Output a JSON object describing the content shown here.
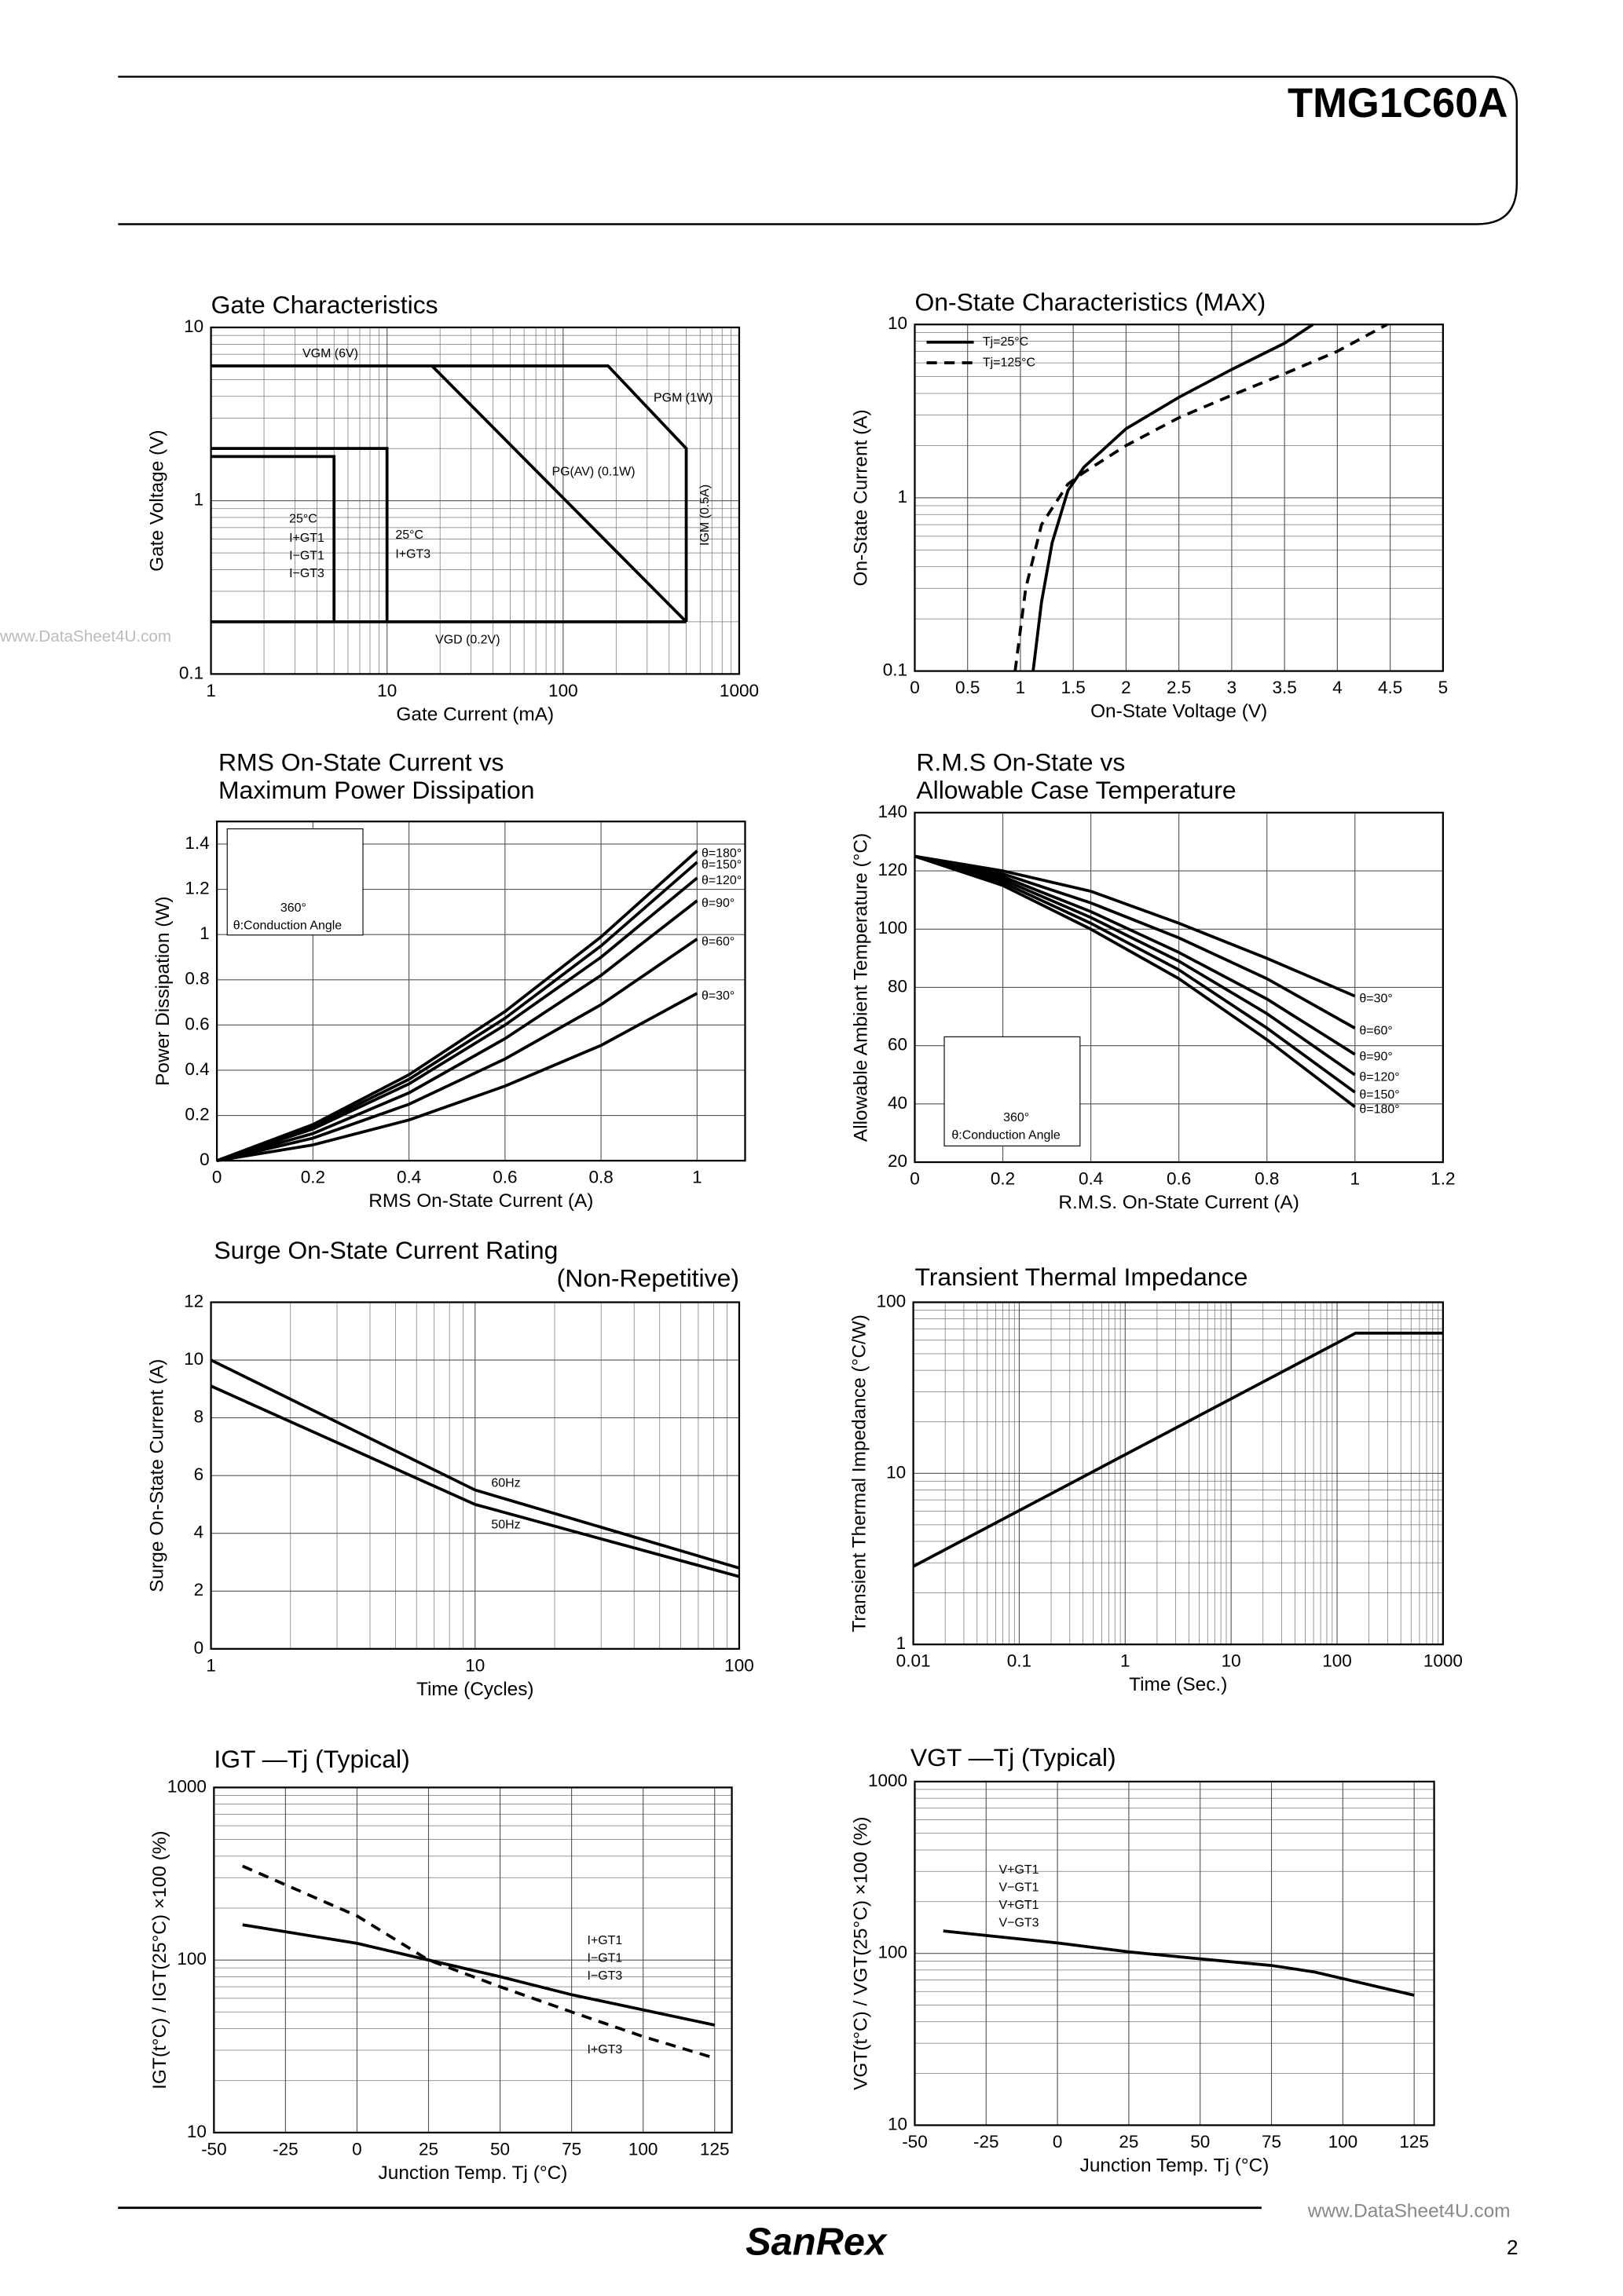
{
  "header": {
    "part": "TMG1C60A"
  },
  "watermark": "www.DataSheet4U.com",
  "footer": {
    "brand": "SanRex",
    "site": "www.DataSheet4U.com",
    "page": "2"
  },
  "chart_data": [
    {
      "type": "line",
      "title": [
        "Gate Characteristics"
      ],
      "xlabel": "Gate Current (mA)",
      "ylabel": "Gate Voltage (V)",
      "xlog": true,
      "ylog": true,
      "xlim": [
        1,
        1000
      ],
      "ylim": [
        0.1,
        10
      ],
      "xticks": [
        1,
        10,
        100,
        1000
      ],
      "yticks": [
        0.1,
        1,
        10
      ],
      "grid": true,
      "series": [
        {
          "color": "#000000",
          "x": [
            1,
            180,
            500,
            500
          ],
          "values": [
            6,
            6,
            2,
            0.2
          ]
        },
        {
          "color": "#000000",
          "x": [
            18,
            500
          ],
          "values": [
            6,
            0.2
          ]
        },
        {
          "color": "#000000",
          "x": [
            1,
            500
          ],
          "values": [
            0.2,
            0.2
          ]
        },
        {
          "color": "#000000",
          "x": [
            1,
            5,
            5
          ],
          "values": [
            1.8,
            1.8,
            0.2
          ]
        },
        {
          "color": "#000000",
          "x": [
            1,
            10,
            10
          ],
          "values": [
            2,
            2,
            0.2
          ]
        }
      ],
      "annotations": [
        "VGM (6V)",
        "PGM (1W)",
        "PG(AV) (0.1W)",
        "IGM (0.5A)",
        "VGD (0.2V)",
        "25°C",
        "I+GT1",
        "I−GT1",
        "I−GT3",
        "25°C",
        "I+GT3"
      ]
    },
    {
      "type": "line",
      "title": [
        "On-State Characteristics (MAX)"
      ],
      "xlabel": "On-State Voltage (V)",
      "ylabel": "On-State Current (A)",
      "xlog": false,
      "ylog": true,
      "xlim": [
        0,
        5
      ],
      "ylim": [
        0.1,
        10
      ],
      "xticks": [
        0,
        0.5,
        1,
        1.5,
        2,
        2.5,
        3,
        3.5,
        4,
        4.5,
        5
      ],
      "yticks": [
        0.1,
        1,
        10
      ],
      "grid": true,
      "legend": "upper left",
      "series": [
        {
          "name": "Tj=25°C",
          "color": "#000000",
          "x": [
            1.12,
            1.2,
            1.3,
            1.45,
            1.6,
            2,
            2.5,
            3,
            3.5,
            3.77
          ],
          "values": [
            0.1,
            0.25,
            0.55,
            1.1,
            1.5,
            2.5,
            3.8,
            5.5,
            7.8,
            10
          ]
        },
        {
          "name": "Tj=125°C",
          "color": "#000000",
          "dash": true,
          "x": [
            0.95,
            1.05,
            1.2,
            1.45,
            1.6,
            2,
            2.5,
            3,
            3.5,
            4,
            4.47
          ],
          "values": [
            0.1,
            0.3,
            0.7,
            1.2,
            1.4,
            2,
            2.9,
            3.9,
            5.2,
            7,
            10
          ]
        }
      ]
    },
    {
      "type": "line",
      "title": [
        "RMS On-State Current vs",
        "Maximum Power Dissipation"
      ],
      "xlabel": "RMS On-State Current (A)",
      "ylabel": "Power Dissipation (W)",
      "xlog": false,
      "ylog": false,
      "xlim": [
        0,
        1.1
      ],
      "ylim": [
        0,
        1.5
      ],
      "xticks": [
        0,
        0.2,
        0.4,
        0.6,
        0.8,
        1
      ],
      "yticks": [
        0,
        0.2,
        0.4,
        0.6,
        0.8,
        1,
        1.2,
        1.4
      ],
      "grid": true,
      "legend": "direct",
      "series": [
        {
          "name": "θ=180°",
          "color": "#000000",
          "x": [
            0,
            0.2,
            0.4,
            0.6,
            0.8,
            1
          ],
          "values": [
            0,
            0.16,
            0.38,
            0.66,
            0.99,
            1.37
          ]
        },
        {
          "name": "θ=150°",
          "color": "#000000",
          "x": [
            0,
            0.2,
            0.4,
            0.6,
            0.8,
            1
          ],
          "values": [
            0,
            0.15,
            0.36,
            0.63,
            0.95,
            1.32
          ]
        },
        {
          "name": "θ=120°",
          "color": "#000000",
          "x": [
            0,
            0.2,
            0.4,
            0.6,
            0.8,
            1
          ],
          "values": [
            0,
            0.14,
            0.34,
            0.6,
            0.9,
            1.25
          ]
        },
        {
          "name": "θ=90°",
          "color": "#000000",
          "x": [
            0,
            0.2,
            0.4,
            0.6,
            0.8,
            1
          ],
          "values": [
            0,
            0.12,
            0.3,
            0.54,
            0.82,
            1.15
          ]
        },
        {
          "name": "θ=60°",
          "color": "#000000",
          "x": [
            0,
            0.2,
            0.4,
            0.6,
            0.8,
            1
          ],
          "values": [
            0,
            0.1,
            0.25,
            0.45,
            0.69,
            0.98
          ]
        },
        {
          "name": "θ=30°",
          "color": "#000000",
          "x": [
            0,
            0.2,
            0.4,
            0.6,
            0.8,
            1
          ],
          "values": [
            0,
            0.07,
            0.18,
            0.33,
            0.51,
            0.74
          ]
        }
      ],
      "annotations": [
        "θ:Conduction Angle",
        "360°"
      ]
    },
    {
      "type": "line",
      "title": [
        "R.M.S On-State vs",
        "Allowable Case Temperature"
      ],
      "xlabel": "R.M.S. On-State Current (A)",
      "ylabel": "Allowable Ambient Temperature (°C)",
      "xlog": false,
      "ylog": false,
      "xlim": [
        0,
        1.2
      ],
      "ylim": [
        20,
        140
      ],
      "xticks": [
        0,
        0.2,
        0.4,
        0.6,
        0.8,
        1,
        1.2
      ],
      "yticks": [
        20,
        40,
        60,
        80,
        100,
        120,
        140
      ],
      "grid": true,
      "legend": "direct",
      "series": [
        {
          "name": "θ=30°",
          "color": "#000000",
          "x": [
            0,
            0.2,
            0.4,
            0.6,
            0.8,
            1
          ],
          "values": [
            125,
            120,
            113,
            102,
            90,
            77
          ]
        },
        {
          "name": "θ=60°",
          "color": "#000000",
          "x": [
            0,
            0.2,
            0.4,
            0.6,
            0.8,
            1
          ],
          "values": [
            125,
            119,
            109,
            97,
            83,
            66
          ]
        },
        {
          "name": "θ=90°",
          "color": "#000000",
          "x": [
            0,
            0.2,
            0.4,
            0.6,
            0.8,
            1
          ],
          "values": [
            125,
            118,
            106,
            92,
            76,
            57
          ]
        },
        {
          "name": "θ=120°",
          "color": "#000000",
          "x": [
            0,
            0.2,
            0.4,
            0.6,
            0.8,
            1
          ],
          "values": [
            125,
            117,
            104,
            89,
            71,
            50
          ]
        },
        {
          "name": "θ=150°",
          "color": "#000000",
          "x": [
            0,
            0.2,
            0.4,
            0.6,
            0.8,
            1
          ],
          "values": [
            125,
            116,
            102,
            86,
            66,
            44
          ]
        },
        {
          "name": "θ=180°",
          "color": "#000000",
          "x": [
            0,
            0.2,
            0.4,
            0.6,
            0.8,
            1
          ],
          "values": [
            125,
            115,
            100,
            83,
            62,
            39
          ]
        }
      ],
      "annotations": [
        "θ:Conduction Angle",
        "360°"
      ]
    },
    {
      "type": "line",
      "title": [
        "Surge On-State Current Rating",
        "(Non-Repetitive)"
      ],
      "xlabel": "Time (Cycles)",
      "ylabel": "Surge On-State Current (A)",
      "xlog": true,
      "ylog": false,
      "xlim": [
        1,
        100
      ],
      "ylim": [
        0,
        12
      ],
      "xticks": [
        1,
        10,
        100
      ],
      "yticks": [
        0,
        2,
        4,
        6,
        8,
        10,
        12
      ],
      "grid": true,
      "legend": "placed",
      "series": [
        {
          "name": "60Hz",
          "color": "#000000",
          "x": [
            1,
            10,
            100
          ],
          "values": [
            10,
            5.5,
            2.8
          ]
        },
        {
          "name": "50Hz",
          "color": "#000000",
          "x": [
            1,
            10,
            100
          ],
          "values": [
            9.1,
            5,
            2.5
          ]
        }
      ]
    },
    {
      "type": "line",
      "title": [
        "Transient Thermal Impedance"
      ],
      "xlabel": "Time (Sec.)",
      "ylabel": "Transient Thermal Impedance (°C/W)",
      "xlog": true,
      "ylog": true,
      "xlim": [
        0.01,
        1000
      ],
      "ylim": [
        1,
        100
      ],
      "xticks": [
        0.01,
        0.1,
        1,
        10,
        100,
        1000
      ],
      "yticks": [
        1,
        10,
        100
      ],
      "grid": true,
      "series": [
        {
          "color": "#000000",
          "x": [
            0.01,
            150,
            1000
          ],
          "values": [
            2.86,
            66,
            66
          ]
        }
      ]
    },
    {
      "type": "line",
      "title": [
        "IGT —Tj (Typical)"
      ],
      "xlabel": "Junction Temp. Tj (°C)",
      "ylabel": "IGT(t°C) / IGT(25°C) ×100 (%)",
      "xlog": false,
      "ylog": true,
      "xlim": [
        -50,
        131
      ],
      "ylim": [
        10,
        1000
      ],
      "xticks": [
        -50,
        -25,
        0,
        25,
        50,
        75,
        100,
        125
      ],
      "yticks": [
        10,
        100,
        1000
      ],
      "grid": true,
      "series": [
        {
          "color": "#000000",
          "x": [
            -40,
            0,
            25,
            50,
            75,
            125
          ],
          "values": [
            160,
            125,
            100,
            80,
            63,
            42
          ]
        },
        {
          "color": "#000000",
          "dash": true,
          "x": [
            -40,
            0,
            25,
            50,
            75,
            100,
            125
          ],
          "values": [
            350,
            180,
            100,
            70,
            50,
            36,
            27
          ]
        }
      ],
      "annotations": [
        "I+GT1",
        "I−GT1",
        "I−GT3",
        "I+GT3"
      ]
    },
    {
      "type": "line",
      "title": [
        "VGT —Tj (Typical)"
      ],
      "xlabel": "Junction Temp. Tj (°C)",
      "ylabel": "VGT(t°C) / VGT(25°C) ×100 (%)",
      "xlog": false,
      "ylog": true,
      "xlim": [
        -50,
        132
      ],
      "ylim": [
        10,
        1000
      ],
      "xticks": [
        -50,
        -25,
        0,
        25,
        50,
        75,
        100,
        125
      ],
      "yticks": [
        10,
        100,
        1000
      ],
      "grid": true,
      "series": [
        {
          "color": "#000000",
          "x": [
            -40,
            0,
            25,
            50,
            75,
            90,
            125
          ],
          "values": [
            135,
            115,
            102,
            93,
            85,
            78,
            57
          ]
        }
      ],
      "annotations": [
        "V+GT1",
        "V−GT1",
        "V+GT1",
        "V−GT3"
      ]
    }
  ]
}
